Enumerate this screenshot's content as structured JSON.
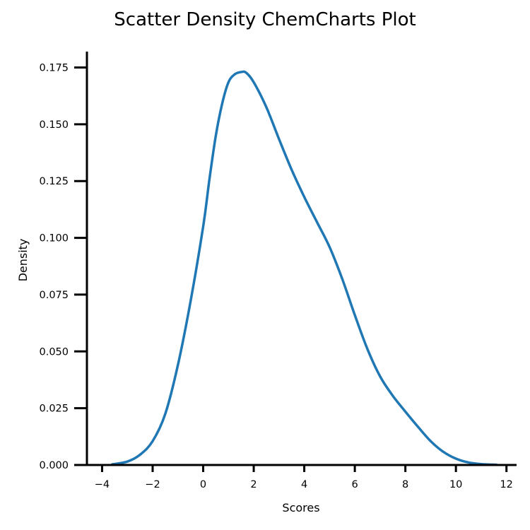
{
  "chart_data": {
    "type": "line",
    "title": "Scatter Density ChemCharts Plot",
    "xlabel": "Scores",
    "ylabel": "Density",
    "xlim": [
      -4.6,
      12.4
    ],
    "ylim": [
      0.0,
      0.182
    ],
    "xticks": [
      -4,
      -2,
      0,
      2,
      4,
      6,
      8,
      10,
      12
    ],
    "xtick_labels": [
      "−4",
      "−2",
      "0",
      "2",
      "4",
      "6",
      "8",
      "10",
      "12"
    ],
    "yticks": [
      0.0,
      0.025,
      0.05,
      0.075,
      0.1,
      0.125,
      0.15,
      0.175
    ],
    "ytick_labels": [
      "0.000",
      "0.025",
      "0.050",
      "0.075",
      "0.100",
      "0.125",
      "0.150",
      "0.175"
    ],
    "grid": false,
    "legend": "none",
    "series": [
      {
        "color": "#1f77b4",
        "x": [
          -3.6,
          -3.0,
          -2.5,
          -2.0,
          -1.5,
          -1.0,
          -0.5,
          0.0,
          0.25,
          0.5,
          0.75,
          1.0,
          1.25,
          1.5,
          1.7,
          2.0,
          2.5,
          3.0,
          3.5,
          4.0,
          4.5,
          5.0,
          5.5,
          6.0,
          6.5,
          7.0,
          7.5,
          8.0,
          8.5,
          9.0,
          9.5,
          10.0,
          10.5,
          11.0,
          11.6
        ],
        "y": [
          0.0003,
          0.0015,
          0.0045,
          0.0105,
          0.0225,
          0.044,
          0.072,
          0.105,
          0.126,
          0.145,
          0.159,
          0.1685,
          0.172,
          0.173,
          0.1727,
          0.1685,
          0.1575,
          0.1435,
          0.13,
          0.118,
          0.107,
          0.096,
          0.082,
          0.066,
          0.051,
          0.039,
          0.0305,
          0.0235,
          0.0168,
          0.0105,
          0.0058,
          0.0028,
          0.0011,
          0.0004,
          0.0001
        ]
      }
    ]
  }
}
